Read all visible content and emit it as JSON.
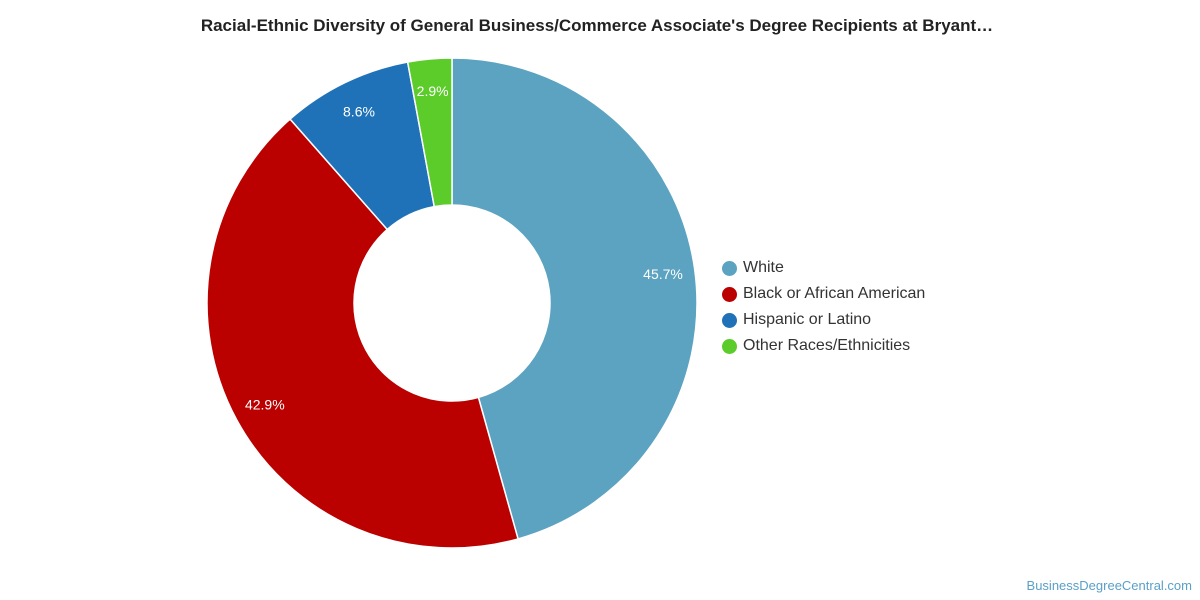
{
  "chart_data": {
    "type": "pie",
    "title": "Racial-Ethnic Diversity of General Business/Commerce Associate's Degree Recipients at Bryant…",
    "donut": true,
    "legend_position": "right",
    "slices": [
      {
        "name": "White",
        "value": 45.7,
        "label": "45.7%",
        "color": "#5ba3c0"
      },
      {
        "name": "Black or African American",
        "value": 42.9,
        "label": "42.9%",
        "color": "#bb0000"
      },
      {
        "name": "Hispanic or Latino",
        "value": 8.6,
        "label": "8.6%",
        "color": "#1f72b8"
      },
      {
        "name": "Other Races/Ethnicities",
        "value": 2.9,
        "label": "2.9%",
        "color": "#5bcc2a"
      }
    ]
  },
  "footer": {
    "source": "BusinessDegreeCentral.com"
  }
}
